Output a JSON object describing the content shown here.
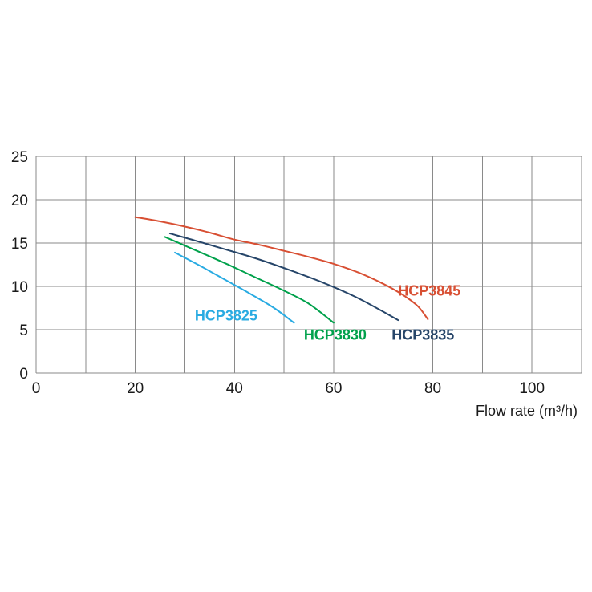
{
  "chart_data": {
    "type": "line",
    "title": "",
    "xlabel": "Flow rate (m³/h)",
    "ylabel": "",
    "xlim": [
      0,
      110
    ],
    "ylim": [
      0,
      25
    ],
    "x_ticks": [
      0,
      20,
      40,
      60,
      80,
      100
    ],
    "y_ticks": [
      0,
      5,
      10,
      15,
      20,
      25
    ],
    "x_grid_step": 10,
    "y_grid_step": 5,
    "grid": true,
    "grid_color": "#8a8a8a",
    "tick_color": "#1a1a1a",
    "legend_position": "inline-labels",
    "series": [
      {
        "name": "HCP3845",
        "color": "#d84f33",
        "points": [
          [
            20,
            18.0
          ],
          [
            25,
            17.5
          ],
          [
            30,
            16.9
          ],
          [
            35,
            16.2
          ],
          [
            40,
            15.4
          ],
          [
            45,
            14.8
          ],
          [
            50,
            14.1
          ],
          [
            55,
            13.4
          ],
          [
            60,
            12.6
          ],
          [
            65,
            11.6
          ],
          [
            70,
            10.3
          ],
          [
            74,
            9.0
          ],
          [
            77,
            7.7
          ],
          [
            79,
            6.2
          ]
        ],
        "label_x": 73,
        "label_y": 9.5
      },
      {
        "name": "HCP3835",
        "color": "#264569",
        "points": [
          [
            27,
            16.1
          ],
          [
            32,
            15.3
          ],
          [
            38,
            14.3
          ],
          [
            45,
            13.1
          ],
          [
            52,
            11.7
          ],
          [
            58,
            10.4
          ],
          [
            64,
            8.9
          ],
          [
            69,
            7.4
          ],
          [
            73,
            6.1
          ]
        ],
        "label_x": 71.7,
        "label_y": 4.4
      },
      {
        "name": "HCP3830",
        "color": "#00a14b",
        "points": [
          [
            26,
            15.7
          ],
          [
            32,
            14.2
          ],
          [
            38,
            12.7
          ],
          [
            44,
            11.1
          ],
          [
            50,
            9.5
          ],
          [
            55,
            8.0
          ],
          [
            60,
            5.8
          ]
        ],
        "label_x": 54,
        "label_y": 4.4
      },
      {
        "name": "HCP3825",
        "color": "#29abe2",
        "points": [
          [
            28,
            13.9
          ],
          [
            33,
            12.4
          ],
          [
            38,
            10.8
          ],
          [
            43,
            9.2
          ],
          [
            48,
            7.5
          ],
          [
            52,
            5.8
          ]
        ],
        "label_x": 32,
        "label_y": 6.6
      }
    ]
  }
}
